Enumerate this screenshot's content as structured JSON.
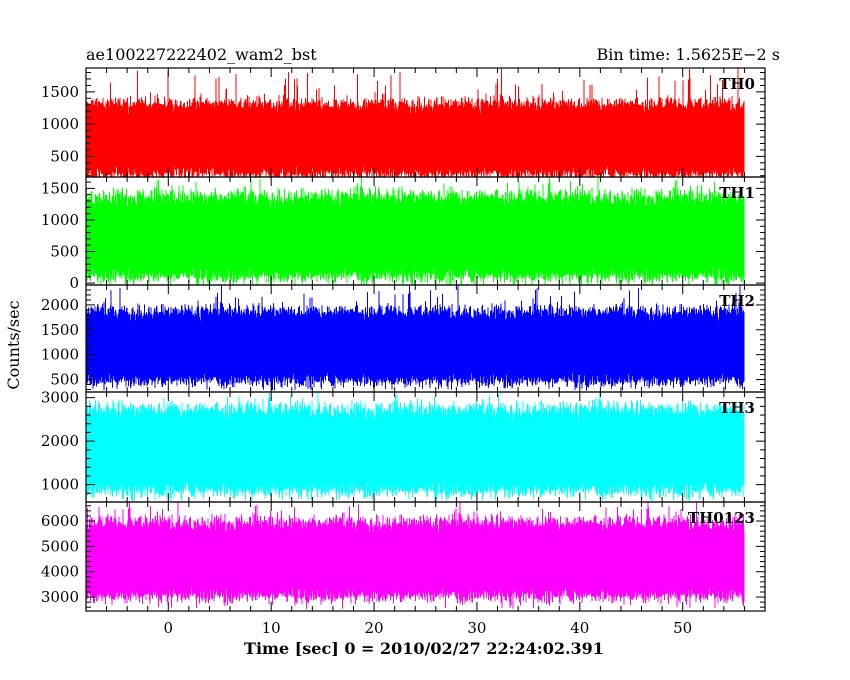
{
  "chart_data": {
    "type": "line",
    "title": "ae100227222402_wam2_bst",
    "subtitle": "Bin time: 1.5625E−2 s",
    "xlabel": "Time [sec] 0 = 2010/02/27 22:24:02.391",
    "ylabel": "Counts/sec",
    "xlim": [
      -8,
      58
    ],
    "x_ticks": [
      0,
      10,
      20,
      30,
      40,
      50
    ],
    "x_data_range": [
      -8,
      56
    ],
    "grid": false,
    "legend": "none",
    "panels": [
      {
        "name": "TH0",
        "color": "#ff0000",
        "ylim": [
          180,
          1870
        ],
        "y_ticks": [
          500,
          1000,
          1500
        ],
        "mean": 820,
        "band_low": 240,
        "band_high": 1300,
        "spike_max": 1870
      },
      {
        "name": "TH1",
        "color": "#00ff00",
        "ylim": [
          -30,
          1680
        ],
        "y_ticks": [
          0,
          500,
          1000,
          1500
        ],
        "mean": 800,
        "band_low": 130,
        "band_high": 1350,
        "spike_max": 1680
      },
      {
        "name": "TH2",
        "color": "#0000ff",
        "ylim": [
          250,
          2400
        ],
        "y_ticks": [
          500,
          1000,
          1500,
          2000
        ],
        "mean": 1200,
        "band_low": 500,
        "band_high": 1850,
        "spike_max": 2400
      },
      {
        "name": "TH3",
        "color": "#00ffff",
        "ylim": [
          600,
          3130
        ],
        "y_ticks": [
          1000,
          2000,
          3000
        ],
        "mean": 1800,
        "band_low": 900,
        "band_high": 2700,
        "spike_max": 3130
      },
      {
        "name": "TH0123",
        "color": "#ff00ff",
        "ylim": [
          2450,
          6750
        ],
        "y_ticks": [
          3000,
          4000,
          5000,
          6000
        ],
        "mean": 4700,
        "band_low": 3100,
        "band_high": 5900,
        "spike_max": 6750
      }
    ]
  }
}
